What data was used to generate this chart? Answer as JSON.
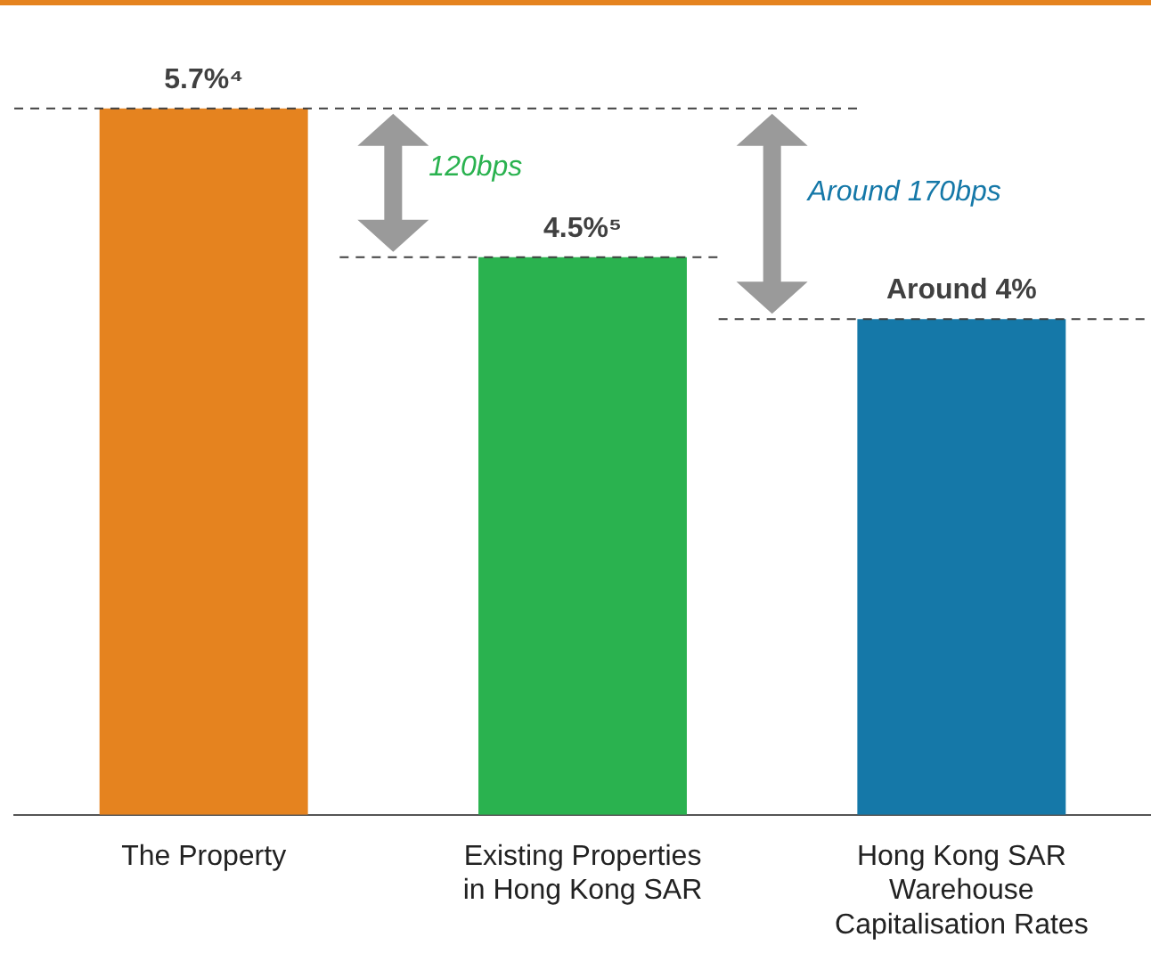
{
  "chart_data": {
    "type": "bar",
    "categories": [
      "The Property",
      "Existing Properties in Hong Kong SAR",
      "Hong Kong SAR Warehouse Capitalisation Rates"
    ],
    "values": [
      5.7,
      4.5,
      4
    ],
    "colors": [
      "#e5831f",
      "#2ab24f",
      "#1578a8"
    ],
    "value_labels": [
      "5.7%⁴",
      "4.5%⁵",
      "Around 4%"
    ],
    "annotations": [
      "120bps",
      "Around 170bps"
    ],
    "ref_lines": [
      {
        "axis": "y",
        "value": 5.7,
        "color": "#404040",
        "line_style": "dashed"
      },
      {
        "axis": "y",
        "value": 4.5,
        "color": "#404040",
        "line_style": "dashed"
      },
      {
        "axis": "y",
        "value": 4,
        "color": "#404040",
        "line_style": "dashed"
      }
    ],
    "grid": false,
    "legend": false
  }
}
